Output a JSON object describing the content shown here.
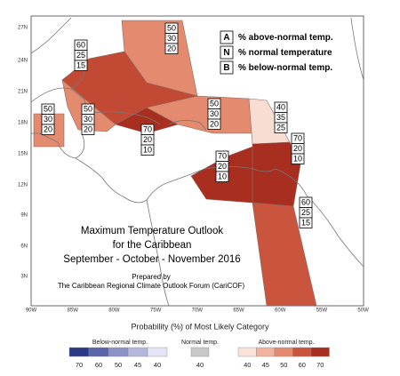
{
  "map": {
    "title_lines": [
      "Maximum Temperature Outlook",
      "for the Caribbean",
      "September - October - November 2016"
    ],
    "credit_lines": [
      "Prepared by",
      "The Caribbean Regional Climate Outlook Forum (CariCOF)"
    ],
    "lat_labels": [
      "27N",
      "24N",
      "21N",
      "18N",
      "15N",
      "12N",
      "9N",
      "6N",
      "3N"
    ],
    "lon_labels": [
      "90W",
      "85W",
      "80W",
      "75W",
      "70W",
      "65W",
      "60W",
      "55W",
      "50W"
    ],
    "key": [
      {
        "letter": "A",
        "text": "% above-normal temp."
      },
      {
        "letter": "N",
        "text": "% normal temperature"
      },
      {
        "letter": "B",
        "text": "% below-normal temp."
      }
    ],
    "regions": [
      {
        "A": 50,
        "N": 30,
        "B": 20,
        "color": "#e48a6e"
      },
      {
        "A": 60,
        "N": 25,
        "B": 15,
        "color": "#c24a35"
      },
      {
        "A": 50,
        "N": 30,
        "B": 20,
        "color": "#e48a6e"
      },
      {
        "A": 50,
        "N": 30,
        "B": 20,
        "color": "#e48a6e"
      },
      {
        "A": 70,
        "N": 20,
        "B": 10,
        "color": "#a82e20"
      },
      {
        "A": 50,
        "N": 30,
        "B": 20,
        "color": "#e48a6e"
      },
      {
        "A": 40,
        "N": 35,
        "B": 25,
        "color": "#f7ddd2"
      },
      {
        "A": 70,
        "N": 20,
        "B": 10,
        "color": "#a82e20"
      },
      {
        "A": 70,
        "N": 20,
        "B": 10,
        "color": "#a82e20"
      },
      {
        "A": 60,
        "N": 25,
        "B": 15,
        "color": "#c9553f"
      }
    ]
  },
  "legend": {
    "title": "Probability (%) of Most Likely Category",
    "groups": [
      {
        "name": "Below-normal temp.",
        "steps": [
          {
            "value": 70,
            "color": "#2b3a86"
          },
          {
            "value": 60,
            "color": "#5c64a8"
          },
          {
            "value": 50,
            "color": "#8c91c6"
          },
          {
            "value": 45,
            "color": "#b5b8dd"
          },
          {
            "value": 40,
            "color": "#e3e4f4"
          }
        ]
      },
      {
        "name": "Normal temp.",
        "steps": [
          {
            "value": 40,
            "color": "#c8c8c8"
          }
        ]
      },
      {
        "name": "Above-normal temp.",
        "steps": [
          {
            "value": 40,
            "color": "#fbe3da"
          },
          {
            "value": 45,
            "color": "#f2b39c"
          },
          {
            "value": 50,
            "color": "#e48a6e"
          },
          {
            "value": 60,
            "color": "#c9553f"
          },
          {
            "value": 70,
            "color": "#a82e20"
          }
        ]
      }
    ]
  }
}
